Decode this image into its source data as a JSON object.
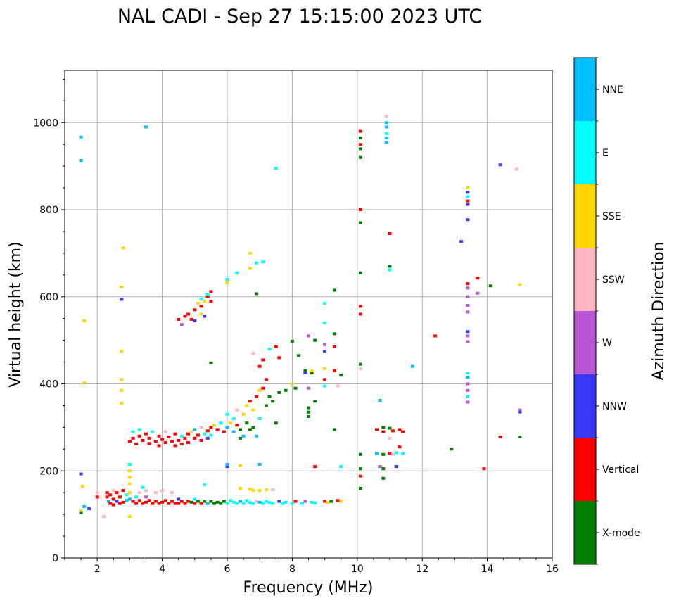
{
  "chart_data": {
    "type": "scatter",
    "title": "NAL CADI - Sep 27 15:15:00 2023 UTC",
    "xlabel": "Frequency (MHz)",
    "ylabel": "Virtual height (km)",
    "xlim": [
      1,
      16
    ],
    "ylim": [
      0,
      1120
    ],
    "xticks": [
      2,
      4,
      6,
      8,
      10,
      12,
      14,
      16
    ],
    "yticks": [
      0,
      200,
      400,
      600,
      800,
      1000
    ],
    "grid": true,
    "colorbar": {
      "label": "Azimuth Direction",
      "placement": "right",
      "categories": [
        "X-mode",
        "Vertical",
        "NNW",
        "W",
        "SSW",
        "SSE",
        "E",
        "NNE"
      ],
      "colors": [
        "#008000",
        "#ff0000",
        "#3a3aff",
        "#ba55d3",
        "#ffb6c1",
        "#ffd700",
        "#00ffff",
        "#00bfff"
      ]
    },
    "point_format": [
      "frequency_MHz",
      "height_km",
      "category_index"
    ],
    "points": [
      [
        1.5,
        967,
        7
      ],
      [
        1.5,
        913,
        7
      ],
      [
        1.5,
        193,
        2
      ],
      [
        1.55,
        165,
        5
      ],
      [
        1.5,
        108,
        5
      ],
      [
        1.5,
        104,
        0
      ],
      [
        1.6,
        118,
        7
      ],
      [
        1.6,
        545,
        5
      ],
      [
        1.6,
        402,
        5
      ],
      [
        1.75,
        113,
        2
      ],
      [
        2.0,
        150,
        4
      ],
      [
        2.0,
        140,
        1
      ],
      [
        2.2,
        95,
        4
      ],
      [
        2.3,
        150,
        1
      ],
      [
        2.3,
        140,
        1
      ],
      [
        2.35,
        130,
        7
      ],
      [
        2.4,
        145,
        1
      ],
      [
        2.4,
        125,
        1
      ],
      [
        2.5,
        155,
        4
      ],
      [
        2.5,
        135,
        1
      ],
      [
        2.5,
        122,
        1
      ],
      [
        2.6,
        150,
        1
      ],
      [
        2.6,
        130,
        2
      ],
      [
        2.7,
        140,
        1
      ],
      [
        2.7,
        125,
        1
      ],
      [
        2.8,
        155,
        1
      ],
      [
        2.8,
        128,
        1
      ],
      [
        2.9,
        145,
        6
      ],
      [
        2.9,
        132,
        7
      ],
      [
        3.0,
        215,
        6
      ],
      [
        3.0,
        200,
        5
      ],
      [
        3.0,
        185,
        5
      ],
      [
        3.0,
        170,
        5
      ],
      [
        3.0,
        150,
        5
      ],
      [
        3.0,
        135,
        7
      ],
      [
        3.0,
        95,
        5
      ],
      [
        3.1,
        130,
        1
      ],
      [
        3.2,
        140,
        6
      ],
      [
        3.2,
        125,
        1
      ],
      [
        3.3,
        150,
        4
      ],
      [
        3.3,
        132,
        1
      ],
      [
        3.4,
        125,
        1
      ],
      [
        3.5,
        155,
        4
      ],
      [
        3.5,
        140,
        3
      ],
      [
        3.5,
        128,
        1
      ],
      [
        3.6,
        132,
        1
      ],
      [
        3.7,
        125,
        1
      ],
      [
        3.8,
        150,
        4
      ],
      [
        3.8,
        130,
        1
      ],
      [
        3.9,
        125,
        1
      ],
      [
        4.0,
        155,
        4
      ],
      [
        4.0,
        128,
        1
      ],
      [
        4.1,
        132,
        1
      ],
      [
        4.2,
        125,
        1
      ],
      [
        4.3,
        150,
        4
      ],
      [
        4.3,
        130,
        1
      ],
      [
        4.4,
        125,
        1
      ],
      [
        4.5,
        135,
        2
      ],
      [
        4.5,
        125,
        1
      ],
      [
        4.6,
        130,
        1
      ],
      [
        4.7,
        125,
        1
      ],
      [
        4.8,
        130,
        1
      ],
      [
        4.9,
        128,
        0
      ],
      [
        5.0,
        125,
        1
      ],
      [
        5.0,
        135,
        6
      ],
      [
        5.1,
        130,
        0
      ],
      [
        5.2,
        125,
        1
      ],
      [
        5.3,
        130,
        0
      ],
      [
        5.4,
        125,
        7
      ],
      [
        5.5,
        130,
        0
      ],
      [
        5.6,
        125,
        0
      ],
      [
        5.7,
        128,
        0
      ],
      [
        5.8,
        125,
        0
      ],
      [
        5.9,
        130,
        0
      ],
      [
        6.0,
        125,
        6
      ],
      [
        6.1,
        132,
        6
      ],
      [
        6.2,
        128,
        6
      ],
      [
        6.3,
        125,
        6
      ],
      [
        6.4,
        130,
        7
      ],
      [
        6.5,
        125,
        6
      ],
      [
        6.6,
        132,
        6
      ],
      [
        6.7,
        127,
        6
      ],
      [
        6.8,
        125,
        6
      ],
      [
        6.9,
        130,
        4
      ],
      [
        7.0,
        128,
        7
      ],
      [
        7.1,
        125,
        6
      ],
      [
        7.2,
        130,
        6
      ],
      [
        7.3,
        127,
        6
      ],
      [
        7.4,
        125,
        6
      ],
      [
        7.6,
        130,
        2
      ],
      [
        7.7,
        125,
        6
      ],
      [
        7.8,
        128,
        6
      ],
      [
        8.0,
        125,
        6
      ],
      [
        8.1,
        130,
        1
      ],
      [
        8.3,
        125,
        6
      ],
      [
        8.4,
        130,
        3
      ],
      [
        8.6,
        128,
        6
      ],
      [
        8.7,
        126,
        6
      ],
      [
        9.0,
        130,
        1
      ],
      [
        9.1,
        127,
        5
      ],
      [
        9.2,
        130,
        0
      ],
      [
        9.4,
        132,
        1
      ],
      [
        9.5,
        130,
        5
      ],
      [
        6.4,
        160,
        5
      ],
      [
        6.7,
        158,
        5
      ],
      [
        6.8,
        155,
        5
      ],
      [
        7.0,
        155,
        5
      ],
      [
        7.2,
        157,
        5
      ],
      [
        7.4,
        157,
        4
      ],
      [
        5.3,
        168,
        6
      ],
      [
        3.4,
        162,
        6
      ],
      [
        6.0,
        210,
        2
      ],
      [
        6.0,
        215,
        7
      ],
      [
        6.4,
        212,
        5
      ],
      [
        7.0,
        215,
        7
      ],
      [
        8.7,
        210,
        1
      ],
      [
        9.5,
        210,
        6
      ],
      [
        3.0,
        268,
        1
      ],
      [
        3.1,
        275,
        1
      ],
      [
        3.1,
        290,
        6
      ],
      [
        3.2,
        262,
        1
      ],
      [
        3.3,
        280,
        1
      ],
      [
        3.3,
        295,
        6
      ],
      [
        3.4,
        270,
        1
      ],
      [
        3.5,
        285,
        1
      ],
      [
        3.6,
        263,
        1
      ],
      [
        3.6,
        275,
        1
      ],
      [
        3.7,
        290,
        6
      ],
      [
        3.8,
        268,
        1
      ],
      [
        3.9,
        280,
        1
      ],
      [
        3.9,
        258,
        1
      ],
      [
        4.0,
        272,
        1
      ],
      [
        4.1,
        265,
        1
      ],
      [
        4.1,
        290,
        4
      ],
      [
        4.2,
        278,
        1
      ],
      [
        4.3,
        268,
        1
      ],
      [
        4.4,
        285,
        1
      ],
      [
        4.4,
        258,
        1
      ],
      [
        4.5,
        270,
        1
      ],
      [
        4.6,
        280,
        6
      ],
      [
        4.6,
        262,
        1
      ],
      [
        4.7,
        275,
        1
      ],
      [
        4.8,
        285,
        1
      ],
      [
        4.8,
        265,
        1
      ],
      [
        4.9,
        290,
        5
      ],
      [
        5.0,
        275,
        1
      ],
      [
        5.0,
        295,
        7
      ],
      [
        5.1,
        282,
        1
      ],
      [
        5.2,
        270,
        1
      ],
      [
        5.2,
        300,
        4
      ],
      [
        5.3,
        285,
        6
      ],
      [
        5.4,
        292,
        1
      ],
      [
        5.4,
        275,
        2
      ],
      [
        5.5,
        300,
        1
      ],
      [
        5.5,
        282,
        6
      ],
      [
        5.6,
        305,
        5
      ],
      [
        5.7,
        295,
        1
      ],
      [
        5.8,
        310,
        6
      ],
      [
        5.9,
        290,
        1
      ],
      [
        6.0,
        330,
        6
      ],
      [
        6.0,
        300,
        7
      ],
      [
        6.1,
        310,
        5
      ],
      [
        6.2,
        320,
        6
      ],
      [
        6.2,
        290,
        7
      ],
      [
        6.3,
        340,
        4
      ],
      [
        6.3,
        305,
        1
      ],
      [
        6.4,
        295,
        0
      ],
      [
        6.4,
        275,
        0
      ],
      [
        6.5,
        330,
        5
      ],
      [
        6.5,
        280,
        7
      ],
      [
        6.6,
        350,
        5
      ],
      [
        6.6,
        310,
        0
      ],
      [
        6.7,
        360,
        1
      ],
      [
        6.7,
        295,
        0
      ],
      [
        6.8,
        300,
        0
      ],
      [
        6.8,
        340,
        5
      ],
      [
        6.9,
        370,
        1
      ],
      [
        6.9,
        280,
        7
      ],
      [
        7.0,
        385,
        5
      ],
      [
        7.0,
        320,
        6
      ],
      [
        7.1,
        390,
        1
      ],
      [
        7.2,
        350,
        0
      ],
      [
        7.3,
        370,
        0
      ],
      [
        7.4,
        360,
        0
      ],
      [
        7.5,
        310,
        0
      ],
      [
        7.6,
        380,
        0
      ],
      [
        7.8,
        385,
        0
      ],
      [
        8.0,
        400,
        5
      ],
      [
        8.1,
        390,
        0
      ],
      [
        7.2,
        410,
        1
      ],
      [
        7.0,
        440,
        1
      ],
      [
        7.1,
        455,
        1
      ],
      [
        6.8,
        470,
        4
      ],
      [
        7.3,
        480,
        6
      ],
      [
        7.5,
        485,
        1
      ],
      [
        7.6,
        460,
        1
      ],
      [
        8.0,
        498,
        0
      ],
      [
        8.2,
        465,
        0
      ],
      [
        8.4,
        430,
        0
      ],
      [
        8.4,
        425,
        2
      ],
      [
        8.5,
        390,
        3
      ],
      [
        8.6,
        425,
        0
      ],
      [
        8.6,
        430,
        5
      ],
      [
        8.5,
        510,
        3
      ],
      [
        8.7,
        500,
        0
      ],
      [
        8.7,
        360,
        0
      ],
      [
        8.5,
        345,
        0
      ],
      [
        8.5,
        335,
        0
      ],
      [
        8.5,
        325,
        0
      ],
      [
        9.0,
        540,
        6
      ],
      [
        9.0,
        490,
        3
      ],
      [
        9.0,
        475,
        2
      ],
      [
        9.0,
        435,
        5
      ],
      [
        9.0,
        410,
        1
      ],
      [
        9.0,
        395,
        6
      ],
      [
        9.0,
        585,
        6
      ],
      [
        9.3,
        615,
        0
      ],
      [
        9.3,
        515,
        0
      ],
      [
        9.3,
        485,
        1
      ],
      [
        9.3,
        430,
        1
      ],
      [
        9.5,
        420,
        0
      ],
      [
        9.4,
        395,
        4
      ],
      [
        9.3,
        295,
        0
      ],
      [
        4.5,
        548,
        1
      ],
      [
        4.6,
        536,
        3
      ],
      [
        4.7,
        555,
        1
      ],
      [
        4.8,
        560,
        1
      ],
      [
        4.9,
        548,
        1
      ],
      [
        5.0,
        545,
        2
      ],
      [
        5.0,
        570,
        1
      ],
      [
        5.1,
        585,
        5
      ],
      [
        5.2,
        578,
        1
      ],
      [
        5.2,
        595,
        6
      ],
      [
        5.3,
        590,
        5
      ],
      [
        5.4,
        600,
        1
      ],
      [
        5.4,
        605,
        6
      ],
      [
        5.5,
        612,
        1
      ],
      [
        5.5,
        590,
        1
      ],
      [
        5.2,
        560,
        5
      ],
      [
        5.3,
        555,
        2
      ],
      [
        6.0,
        640,
        6
      ],
      [
        6.0,
        632,
        5
      ],
      [
        6.3,
        655,
        6
      ],
      [
        6.7,
        665,
        5
      ],
      [
        6.7,
        700,
        5
      ],
      [
        6.9,
        678,
        6
      ],
      [
        7.1,
        680,
        6
      ],
      [
        6.9,
        607,
        0
      ],
      [
        5.5,
        448,
        0
      ],
      [
        2.8,
        712,
        5
      ],
      [
        2.75,
        622,
        5
      ],
      [
        2.75,
        594,
        2
      ],
      [
        2.75,
        475,
        5
      ],
      [
        2.75,
        410,
        5
      ],
      [
        2.75,
        385,
        5
      ],
      [
        2.75,
        355,
        5
      ],
      [
        3.5,
        990,
        7
      ],
      [
        7.5,
        895,
        6
      ],
      [
        10.1,
        980,
        1
      ],
      [
        10.1,
        965,
        0
      ],
      [
        10.1,
        950,
        1
      ],
      [
        10.1,
        940,
        0
      ],
      [
        10.1,
        920,
        0
      ],
      [
        10.1,
        800,
        1
      ],
      [
        10.1,
        770,
        0
      ],
      [
        10.1,
        655,
        0
      ],
      [
        10.1,
        578,
        1
      ],
      [
        10.1,
        560,
        1
      ],
      [
        10.1,
        445,
        0
      ],
      [
        10.1,
        435,
        4
      ],
      [
        10.1,
        238,
        0
      ],
      [
        10.1,
        205,
        0
      ],
      [
        10.1,
        188,
        1
      ],
      [
        10.1,
        160,
        0
      ],
      [
        10.9,
        1015,
        4
      ],
      [
        10.9,
        1000,
        7
      ],
      [
        10.9,
        990,
        7
      ],
      [
        10.9,
        975,
        6
      ],
      [
        10.9,
        965,
        7
      ],
      [
        10.9,
        955,
        7
      ],
      [
        11.0,
        745,
        1
      ],
      [
        11.0,
        670,
        0
      ],
      [
        11.0,
        662,
        6
      ],
      [
        10.7,
        362,
        7
      ],
      [
        11.7,
        440,
        7
      ],
      [
        10.6,
        295,
        1
      ],
      [
        10.8,
        300,
        0
      ],
      [
        10.8,
        290,
        1
      ],
      [
        11.0,
        298,
        0
      ],
      [
        11.1,
        292,
        1
      ],
      [
        11.3,
        295,
        1
      ],
      [
        11.4,
        290,
        1
      ],
      [
        10.6,
        240,
        7
      ],
      [
        10.8,
        238,
        0
      ],
      [
        11.0,
        240,
        1
      ],
      [
        11.1,
        238,
        4
      ],
      [
        11.2,
        242,
        6
      ],
      [
        11.4,
        240,
        6
      ],
      [
        10.7,
        210,
        3
      ],
      [
        10.8,
        205,
        0
      ],
      [
        11.2,
        210,
        2
      ],
      [
        10.8,
        183,
        0
      ],
      [
        11.0,
        275,
        4
      ],
      [
        11.3,
        255,
        1
      ],
      [
        12.4,
        510,
        1
      ],
      [
        12.9,
        250,
        0
      ],
      [
        13.2,
        727,
        2
      ],
      [
        13.4,
        850,
        5
      ],
      [
        13.4,
        840,
        2
      ],
      [
        13.4,
        830,
        6
      ],
      [
        13.4,
        820,
        1
      ],
      [
        13.4,
        812,
        2
      ],
      [
        13.4,
        777,
        2
      ],
      [
        13.4,
        630,
        1
      ],
      [
        13.4,
        620,
        3
      ],
      [
        13.4,
        600,
        3
      ],
      [
        13.4,
        580,
        3
      ],
      [
        13.4,
        565,
        3
      ],
      [
        13.4,
        520,
        2
      ],
      [
        13.4,
        510,
        3
      ],
      [
        13.4,
        497,
        3
      ],
      [
        13.4,
        425,
        6
      ],
      [
        13.4,
        415,
        7
      ],
      [
        13.4,
        400,
        3
      ],
      [
        13.4,
        385,
        3
      ],
      [
        13.4,
        370,
        6
      ],
      [
        13.4,
        358,
        3
      ],
      [
        13.7,
        643,
        1
      ],
      [
        13.7,
        608,
        3
      ],
      [
        14.1,
        625,
        0
      ],
      [
        14.4,
        903,
        2
      ],
      [
        14.9,
        893,
        4
      ],
      [
        15.0,
        628,
        5
      ],
      [
        14.4,
        278,
        1
      ],
      [
        15.0,
        278,
        0
      ],
      [
        15.0,
        340,
        3
      ],
      [
        15.0,
        335,
        2
      ],
      [
        13.9,
        205,
        1
      ]
    ]
  }
}
